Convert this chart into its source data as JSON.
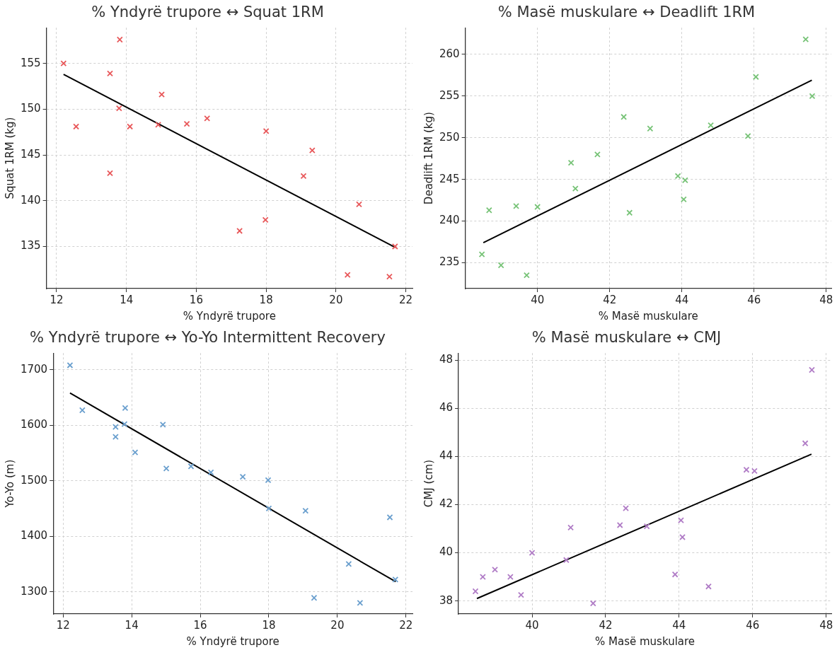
{
  "chart_data": [
    {
      "type": "scatter",
      "title": "% Yndyrë trupore ↔ Squat 1RM",
      "xlabel": "% Yndyrë trupore",
      "ylabel": "Squat 1RM (kg)",
      "xlim": [
        11.71,
        22.19
      ],
      "xticks": [
        12,
        14,
        16,
        18,
        20,
        22
      ],
      "ylim": [
        130.4,
        158.9
      ],
      "yticks": [
        135,
        140,
        145,
        150,
        155
      ],
      "grid": true,
      "series": [
        {
          "type": "scatter",
          "marker": "cross",
          "color": "#e8585a",
          "x": [
            12.2,
            12.56,
            13.81,
            13.53,
            13.53,
            13.79,
            14.1,
            14.91,
            15.01,
            15.73,
            16.31,
            17.24,
            18.0,
            17.98,
            19.07,
            19.32,
            20.33,
            20.66,
            21.53,
            21.69
          ],
          "values": [
            155.0,
            148.1,
            157.6,
            153.9,
            143.0,
            150.1,
            148.1,
            148.3,
            151.6,
            148.4,
            149.0,
            136.7,
            147.6,
            137.9,
            142.7,
            145.5,
            131.9,
            139.6,
            131.7,
            135.0
          ]
        },
        {
          "type": "line",
          "marker": "none",
          "color": "#000000",
          "x": [
            12.2,
            21.7
          ],
          "values": [
            153.8,
            134.9
          ]
        }
      ]
    },
    {
      "type": "scatter",
      "title": "% Masë muskulare ↔ Deadlift 1RM",
      "xlabel": "% Masë muskulare",
      "ylabel": "Deadlift 1RM (kg)",
      "xlim": [
        38.0,
        48.14
      ],
      "xticks": [
        40,
        42,
        44,
        46,
        48
      ],
      "ylim": [
        231.9,
        263.2
      ],
      "yticks": [
        235,
        240,
        245,
        250,
        255,
        260
      ],
      "grid": true,
      "series": [
        {
          "type": "scatter",
          "marker": "cross",
          "color": "#77c377",
          "x": [
            38.46,
            38.66,
            38.99,
            39.41,
            39.7,
            40.0,
            40.93,
            41.05,
            41.66,
            42.39,
            42.55,
            43.12,
            43.89,
            44.05,
            44.09,
            44.8,
            45.83,
            46.05,
            47.43,
            47.61
          ],
          "values": [
            236.0,
            241.3,
            234.7,
            241.8,
            233.5,
            241.7,
            247.0,
            243.9,
            248.0,
            252.5,
            241.0,
            251.1,
            245.4,
            242.6,
            244.9,
            251.5,
            250.2,
            257.3,
            261.8,
            255.0
          ]
        },
        {
          "type": "line",
          "marker": "none",
          "color": "#000000",
          "x": [
            38.5,
            47.6
          ],
          "values": [
            237.4,
            256.9
          ]
        }
      ]
    },
    {
      "type": "scatter",
      "title": "% Yndyrë trupore ↔ Yo-Yo Intermittent Recovery",
      "xlabel": "% Yndyrë trupore",
      "ylabel": "Yo-Yo (m)",
      "xlim": [
        11.71,
        22.19
      ],
      "xticks": [
        12,
        14,
        16,
        18,
        20,
        22
      ],
      "ylim": [
        1260,
        1730
      ],
      "yticks": [
        1300,
        1400,
        1500,
        1600,
        1700
      ],
      "grid": true,
      "series": [
        {
          "type": "scatter",
          "marker": "cross",
          "color": "#6a9fce",
          "x": [
            12.2,
            12.56,
            13.81,
            13.53,
            13.53,
            13.79,
            14.1,
            14.91,
            15.01,
            15.73,
            16.31,
            17.24,
            17.98,
            18.0,
            19.07,
            19.32,
            20.33,
            20.66,
            21.53,
            21.69
          ],
          "values": [
            1708,
            1627,
            1631,
            1597,
            1579,
            1602,
            1551,
            1601,
            1522,
            1526,
            1515,
            1507,
            1501,
            1450,
            1446,
            1289,
            1350,
            1280,
            1434,
            1322
          ]
        },
        {
          "type": "line",
          "marker": "none",
          "color": "#000000",
          "x": [
            12.2,
            21.7
          ],
          "values": [
            1658,
            1318
          ]
        }
      ]
    },
    {
      "type": "scatter",
      "title": "% Masë muskulare ↔ CMJ",
      "xlabel": "% Masë muskulare",
      "ylabel": "CMJ (cm)",
      "xlim": [
        38.0,
        48.14
      ],
      "xticks": [
        40,
        42,
        44,
        46,
        48
      ],
      "ylim": [
        37.46,
        48.3
      ],
      "yticks": [
        38,
        40,
        42,
        44,
        46,
        48
      ],
      "grid": true,
      "series": [
        {
          "type": "scatter",
          "marker": "cross",
          "color": "#b07cc6",
          "x": [
            38.46,
            38.66,
            38.99,
            39.41,
            39.7,
            40.0,
            40.93,
            41.05,
            41.66,
            42.39,
            42.55,
            43.12,
            43.89,
            44.05,
            44.09,
            44.8,
            45.83,
            46.05,
            47.43,
            47.61
          ],
          "values": [
            38.4,
            39.0,
            39.3,
            39.0,
            38.25,
            40.0,
            39.7,
            41.05,
            37.9,
            41.15,
            41.85,
            41.1,
            39.1,
            41.35,
            40.65,
            38.6,
            43.45,
            43.4,
            44.55,
            47.6
          ]
        },
        {
          "type": "line",
          "marker": "none",
          "color": "#000000",
          "x": [
            38.5,
            47.6
          ],
          "values": [
            38.1,
            44.1
          ]
        }
      ]
    }
  ]
}
